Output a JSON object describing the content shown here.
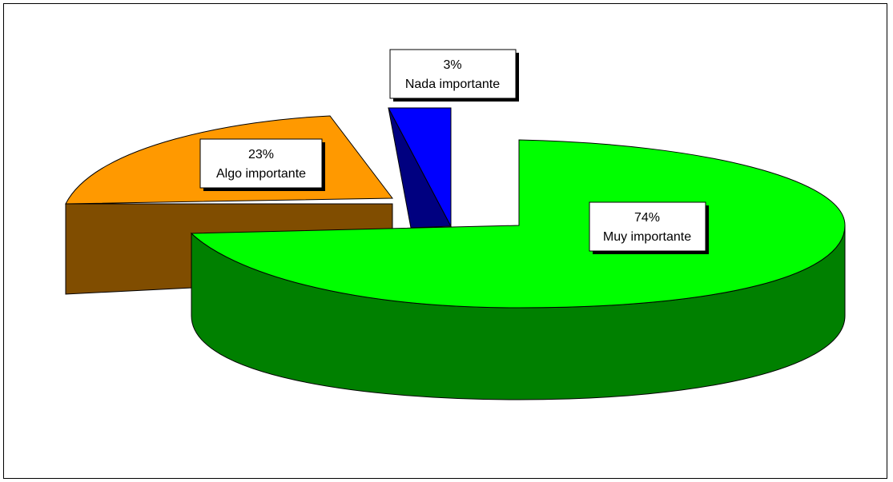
{
  "chart_data": {
    "type": "pie",
    "style": "3d-exploded",
    "slices": [
      {
        "label": "Muy importante",
        "value": 74,
        "percent_label": "74%",
        "top_color": "#00ff00",
        "side_color": "#008000"
      },
      {
        "label": "Algo importante",
        "value": 23,
        "percent_label": "23%",
        "top_color": "#ff9900",
        "side_color": "#804d00"
      },
      {
        "label": "Nada importante",
        "value": 3,
        "percent_label": "3%",
        "top_color": "#0000ff",
        "side_color": "#000080"
      }
    ],
    "title": "",
    "legend": "none"
  }
}
